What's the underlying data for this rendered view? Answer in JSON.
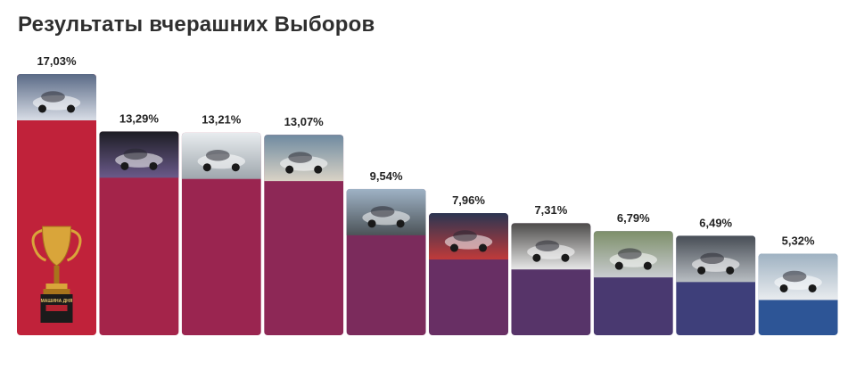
{
  "title": "Результаты вчерашних Выборов",
  "trophy_text": "МАШИНА ДНЯ",
  "chart_data": {
    "type": "bar",
    "title": "Результаты вчерашних Выборов",
    "xlabel": "",
    "ylabel": "",
    "ylim": [
      0,
      17.03
    ],
    "grid": false,
    "legend": "none",
    "categories": [
      "",
      "",
      "",
      "",
      "",
      "",
      "",
      "",
      "",
      ""
    ],
    "values": [
      17.03,
      13.29,
      13.21,
      13.07,
      9.54,
      7.96,
      7.31,
      6.79,
      6.49,
      5.32
    ],
    "labels": [
      "17,03%",
      "13,29%",
      "13,21%",
      "13,07%",
      "9,54%",
      "7,96%",
      "7,31%",
      "6,79%",
      "6,49%",
      "5,32%"
    ],
    "colors": [
      "#c0223a",
      "#a4244a",
      "#9a2550",
      "#8d2856",
      "#7b2b5c",
      "#682f64",
      "#573469",
      "#493970",
      "#3e3f7a",
      "#2d5596"
    ],
    "photo_tones": [
      [
        "#5a6a86",
        "#d8dde6"
      ],
      [
        "#1d1d24",
        "#6a5a8a"
      ],
      [
        "#e8ecef",
        "#9fa7ad"
      ],
      [
        "#6f8aa0",
        "#d9d3c6"
      ],
      [
        "#9fb3c6",
        "#4c5358"
      ],
      [
        "#2b3652",
        "#c03a3a"
      ],
      [
        "#4d4b4a",
        "#e7e7e7"
      ],
      [
        "#7d8f6a",
        "#c9ccd0"
      ],
      [
        "#474d55",
        "#b9bec3"
      ],
      [
        "#9fb2c2",
        "#e9ecef"
      ]
    ]
  }
}
